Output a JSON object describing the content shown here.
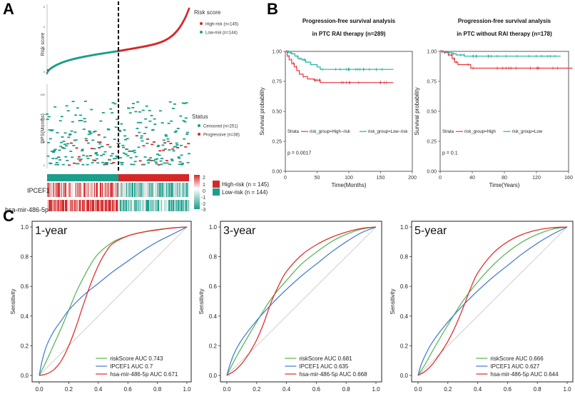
{
  "panel_letters": {
    "a": "A",
    "b": "B",
    "c": "C"
  },
  "chart_data": [
    {
      "type": "scatter",
      "id": "risk-score-curve",
      "ylabel": "Risk score",
      "y_ticks": [
        "6",
        "4",
        "2",
        "0"
      ],
      "legend_title": "Risk score",
      "legend": [
        {
          "label": "High-risk (n=145)",
          "color": "#d62728"
        },
        {
          "label": "Low-risk (n=144)",
          "color": "#1b9e8a"
        }
      ],
      "n_high": 145,
      "n_low": 144,
      "score_range_low": [
        0.2,
        2.0
      ],
      "score_range_high": [
        2.0,
        6.2
      ]
    },
    {
      "type": "scatter",
      "id": "dps-status",
      "ylabel": "DPS(Months)",
      "y_ticks": [
        "150",
        "100",
        "50",
        "0"
      ],
      "legend_title": "Status",
      "legend": [
        {
          "label": "Censored (n=251)",
          "color": "#1b9e8a"
        },
        {
          "label": "Progressive (n=38)",
          "color": "#d62728"
        }
      ],
      "n_censored": 251,
      "n_progressive": 38
    },
    {
      "type": "heatmap",
      "id": "expression-heatmap",
      "rows": [
        "IPCEF1",
        "hsa-mir-486-5p"
      ],
      "color_scale_ticks": [
        "2",
        "1",
        "0",
        "-1",
        "-2",
        "-3"
      ],
      "groups": [
        {
          "label": "High-risk (n = 145)",
          "color": "#d62728"
        },
        {
          "label": "Low-risk (n = 144)",
          "color": "#1b9e8a"
        }
      ]
    },
    {
      "type": "line",
      "id": "km-rai",
      "title_line1": "Progression-free survival analysis",
      "title_line2": "in PTC RAI therapy (n=289)",
      "xlabel": "Time(Months)",
      "ylabel": "Survival probability",
      "xlim": [
        0,
        200
      ],
      "ylim": [
        0,
        1
      ],
      "x_ticks": [
        "0",
        "50",
        "100",
        "150",
        "200"
      ],
      "y_ticks": [
        "0.00",
        "0.25",
        "0.50",
        "0.75",
        "1.00"
      ],
      "strata_title": "Strata",
      "series": [
        {
          "name": "risk_group=High−risk",
          "color": "#e8383d",
          "x": [
            0,
            3,
            6,
            10,
            14,
            18,
            22,
            28,
            35,
            45,
            55,
            60,
            80,
            120,
            170
          ],
          "y": [
            1,
            0.96,
            0.93,
            0.9,
            0.87,
            0.84,
            0.81,
            0.79,
            0.77,
            0.76,
            0.74,
            0.74,
            0.74,
            0.74,
            0.74
          ]
        },
        {
          "name": "risk_group=Low−risk",
          "color": "#20b2a0",
          "x": [
            0,
            5,
            10,
            15,
            20,
            26,
            32,
            40,
            50,
            55,
            80,
            120,
            170
          ],
          "y": [
            1,
            0.99,
            0.98,
            0.96,
            0.94,
            0.93,
            0.91,
            0.89,
            0.87,
            0.85,
            0.85,
            0.85,
            0.85
          ]
        }
      ],
      "p_value": "p = 0.0017"
    },
    {
      "type": "line",
      "id": "km-no-rai",
      "title_line1": "Progression-free survival analysis",
      "title_line2": "in PTC without RAI therapy (n=178)",
      "xlabel": "Time(Years)",
      "ylabel": "Survival probability",
      "xlim": [
        0,
        160
      ],
      "ylim": [
        0,
        1
      ],
      "x_ticks": [
        "0",
        "40",
        "80",
        "120",
        "160"
      ],
      "y_ticks": [
        "0.00",
        "0.25",
        "0.50",
        "0.75",
        "1.00"
      ],
      "strata_title": "Strata",
      "series": [
        {
          "name": "risk_group=High",
          "color": "#e8383d",
          "x": [
            0,
            5,
            10,
            15,
            18,
            22,
            30,
            38,
            45,
            80,
            120,
            165
          ],
          "y": [
            1,
            0.99,
            0.97,
            0.94,
            0.91,
            0.89,
            0.89,
            0.86,
            0.86,
            0.86,
            0.86,
            0.86
          ]
        },
        {
          "name": "risk_group=Low",
          "color": "#20b2a0",
          "x": [
            0,
            5,
            10,
            15,
            20,
            30,
            60,
            100,
            150
          ],
          "y": [
            1,
            0.995,
            0.99,
            0.98,
            0.97,
            0.96,
            0.96,
            0.96,
            0.96
          ]
        }
      ],
      "p_value": "p = 0.1"
    },
    {
      "type": "line",
      "id": "roc-1-year",
      "title": "1-year",
      "xlabel": "",
      "ylabel": "Sensitivity",
      "xlim": [
        0,
        1
      ],
      "ylim": [
        0,
        1
      ],
      "x_ticks": [
        "0.0",
        "0.2",
        "0.4",
        "0.6",
        "0.8",
        "1.0"
      ],
      "y_ticks": [
        "0.0",
        "0.2",
        "0.4",
        "0.6",
        "0.8",
        "1.0"
      ],
      "series": [
        {
          "name": "riskScore AUC 0.743",
          "color": "#5cb85c",
          "x": [
            0,
            0.05,
            0.1,
            0.15,
            0.2,
            0.25,
            0.3,
            0.35,
            0.4,
            0.5,
            0.6,
            0.7,
            0.8,
            0.9,
            1
          ],
          "y": [
            0,
            0.1,
            0.21,
            0.32,
            0.44,
            0.56,
            0.66,
            0.75,
            0.82,
            0.9,
            0.94,
            0.965,
            0.982,
            0.994,
            1
          ]
        },
        {
          "name": "IPCEF1 AUC 0.7",
          "color": "#4a7fd4",
          "x": [
            0,
            0.02,
            0.05,
            0.1,
            0.15,
            0.2,
            0.3,
            0.4,
            0.5,
            0.6,
            0.7,
            0.8,
            0.9,
            1
          ],
          "y": [
            0,
            0.1,
            0.2,
            0.3,
            0.37,
            0.44,
            0.54,
            0.62,
            0.7,
            0.77,
            0.84,
            0.9,
            0.95,
            1
          ]
        },
        {
          "name": "hsa-mir-486-5p AUC 0.671",
          "color": "#e03030",
          "x": [
            0,
            0.05,
            0.1,
            0.15,
            0.2,
            0.25,
            0.3,
            0.35,
            0.4,
            0.45,
            0.5,
            0.6,
            0.7,
            0.8,
            0.9,
            1
          ],
          "y": [
            0,
            0.01,
            0.04,
            0.1,
            0.2,
            0.33,
            0.48,
            0.62,
            0.74,
            0.83,
            0.89,
            0.94,
            0.965,
            0.98,
            0.993,
            1
          ]
        }
      ]
    },
    {
      "type": "line",
      "id": "roc-3-year",
      "title": "3-year",
      "xlabel": "",
      "ylabel": "Sensitivity",
      "xlim": [
        0,
        1
      ],
      "ylim": [
        0,
        1
      ],
      "x_ticks": [
        "0.0",
        "0.2",
        "0.4",
        "0.6",
        "0.8",
        "1.0"
      ],
      "y_ticks": [
        "0.0",
        "0.2",
        "0.4",
        "0.6",
        "0.8",
        "1.0"
      ],
      "series": [
        {
          "name": "riskScore AUC 0.681",
          "color": "#5cb85c",
          "x": [
            0,
            0.05,
            0.1,
            0.2,
            0.3,
            0.4,
            0.5,
            0.6,
            0.7,
            0.8,
            0.9,
            1
          ],
          "y": [
            0,
            0.1,
            0.19,
            0.36,
            0.52,
            0.64,
            0.75,
            0.83,
            0.9,
            0.95,
            0.985,
            1
          ]
        },
        {
          "name": "IPCEF1 AUC 0.635",
          "color": "#4a7fd4",
          "x": [
            0,
            0.02,
            0.05,
            0.1,
            0.2,
            0.3,
            0.4,
            0.5,
            0.6,
            0.7,
            0.8,
            0.9,
            1
          ],
          "y": [
            0,
            0.07,
            0.15,
            0.24,
            0.37,
            0.48,
            0.58,
            0.67,
            0.75,
            0.83,
            0.9,
            0.96,
            1
          ]
        },
        {
          "name": "hsa-mir-486-5p AUC 0.668",
          "color": "#e03030",
          "x": [
            0,
            0.05,
            0.1,
            0.15,
            0.2,
            0.25,
            0.3,
            0.35,
            0.4,
            0.5,
            0.6,
            0.7,
            0.8,
            0.9,
            1
          ],
          "y": [
            0,
            0.03,
            0.08,
            0.15,
            0.24,
            0.36,
            0.5,
            0.61,
            0.7,
            0.81,
            0.88,
            0.93,
            0.965,
            0.99,
            1
          ]
        }
      ]
    },
    {
      "type": "line",
      "id": "roc-5-year",
      "title": "5-year",
      "xlabel": "",
      "ylabel": "Sensitivity",
      "xlim": [
        0,
        1
      ],
      "ylim": [
        0,
        1
      ],
      "x_ticks": [
        "0.0",
        "0.2",
        "0.4",
        "0.6",
        "0.8",
        "1.0"
      ],
      "y_ticks": [
        "0.0",
        "0.2",
        "0.4",
        "0.6",
        "0.8",
        "1.0"
      ],
      "series": [
        {
          "name": "riskScore AUC 0.666",
          "color": "#5cb85c",
          "x": [
            0,
            0.05,
            0.1,
            0.2,
            0.3,
            0.4,
            0.5,
            0.6,
            0.7,
            0.8,
            0.9,
            1
          ],
          "y": [
            0,
            0.08,
            0.17,
            0.34,
            0.5,
            0.63,
            0.74,
            0.83,
            0.9,
            0.95,
            0.985,
            1
          ]
        },
        {
          "name": "IPCEF1 AUC 0.627",
          "color": "#4a7fd4",
          "x": [
            0,
            0.02,
            0.05,
            0.1,
            0.2,
            0.3,
            0.4,
            0.5,
            0.6,
            0.7,
            0.8,
            0.9,
            1
          ],
          "y": [
            0,
            0.07,
            0.14,
            0.23,
            0.36,
            0.47,
            0.57,
            0.66,
            0.74,
            0.82,
            0.89,
            0.95,
            1
          ]
        },
        {
          "name": "hsa-mir-486-5p AUC 0.644",
          "color": "#e03030",
          "x": [
            0,
            0.05,
            0.1,
            0.15,
            0.2,
            0.25,
            0.3,
            0.35,
            0.4,
            0.5,
            0.6,
            0.7,
            0.8,
            0.9,
            1
          ],
          "y": [
            0,
            0.03,
            0.08,
            0.15,
            0.23,
            0.33,
            0.45,
            0.58,
            0.69,
            0.82,
            0.9,
            0.95,
            0.98,
            0.995,
            1
          ]
        }
      ]
    }
  ]
}
